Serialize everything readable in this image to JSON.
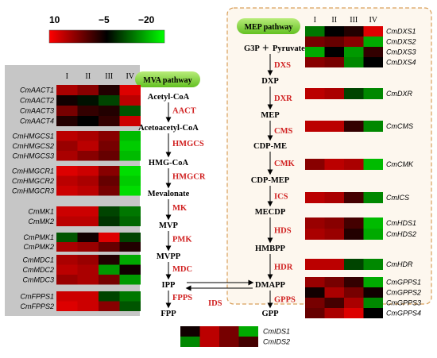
{
  "scale": {
    "labels": [
      "10",
      "−5",
      "−20"
    ],
    "stops": [
      "#ff0000",
      "#000000",
      "#00ff00"
    ]
  },
  "mva": {
    "title": "MVA pathway",
    "columns": [
      "I",
      "II",
      "III",
      "IV"
    ],
    "metabolites": [
      "Acetyl-CoA",
      "Acetoacetyl-CoA",
      "HMG-CoA",
      "Mevalonate",
      "MVP",
      "MVPP",
      "IPP",
      "FPP"
    ],
    "enzymes": [
      "AACT",
      "HMGCS",
      "HMGCR",
      "MK",
      "PMK",
      "MDC",
      "FPPS"
    ],
    "groups": [
      {
        "genes": [
          "CmAACT1",
          "CmAACT2",
          "CmAACT3",
          "CmAACT4"
        ],
        "cells": [
          [
            5,
            3,
            -3,
            8
          ],
          [
            -4,
            -6,
            -9,
            6
          ],
          [
            2,
            -2,
            -3,
            -10
          ],
          [
            -3,
            -5,
            -2,
            7
          ]
        ]
      },
      {
        "genes": [
          "CmHMGCS1",
          "CmHMGCS2",
          "CmHMGCS3"
        ],
        "cells": [
          [
            6,
            5,
            3,
            -16
          ],
          [
            4,
            6,
            2,
            -17
          ],
          [
            5,
            3,
            1,
            -16
          ]
        ]
      },
      {
        "genes": [
          "CmHMGCR1",
          "CmHMGCR2",
          "CmHMGCR3"
        ],
        "cells": [
          [
            8,
            7,
            3,
            -18
          ],
          [
            6,
            5,
            1,
            -17
          ],
          [
            7,
            6,
            2,
            -18
          ]
        ]
      },
      {
        "genes": [
          "CmMK1",
          "CmMK2"
        ],
        "cells": [
          [
            7,
            7,
            -9,
            -12
          ],
          [
            6,
            6,
            -8,
            -11
          ]
        ]
      },
      {
        "genes": [
          "CmPMK1",
          "CmPMK2"
        ],
        "cells": [
          [
            -10,
            -4,
            8,
            -9
          ],
          [
            5,
            4,
            1,
            -3
          ]
        ]
      },
      {
        "genes": [
          "CmMDC1",
          "CmMDC2",
          "CmMDC3"
        ],
        "cells": [
          [
            5,
            4,
            -3,
            -15
          ],
          [
            6,
            5,
            -14,
            -4
          ],
          [
            4,
            5,
            2,
            -14
          ]
        ]
      },
      {
        "genes": [
          "CmFPPS1",
          "CmFPPS2"
        ],
        "cells": [
          [
            7,
            7,
            -9,
            -12
          ],
          [
            8,
            7,
            3,
            -10
          ]
        ]
      }
    ]
  },
  "mep": {
    "title": "MEP pathway",
    "columns": [
      "I",
      "II",
      "III",
      "IV"
    ],
    "g3p": "G3P",
    "plus": "+",
    "pyruvate": "Pyruvate",
    "metabolites": [
      "DXP",
      "MEP",
      "CDP-ME",
      "CDP-MEP",
      "MECDP",
      "HMBPP",
      "DMAPP",
      "GPP"
    ],
    "enzymes": [
      "DXS",
      "DXR",
      "CMS",
      "CMK",
      "ICS",
      "HDS",
      "HDR",
      "GPPS"
    ],
    "ids": "IDS",
    "groups": [
      {
        "genes": [
          "CmDXS1",
          "CmDXS2",
          "CmDXS3",
          "CmDXS4"
        ],
        "cells": [
          [
            -12,
            -5,
            -3,
            8
          ],
          [
            2,
            1,
            3,
            -15
          ],
          [
            -15,
            -5,
            -14,
            -2
          ],
          [
            3,
            2,
            -13,
            -5
          ]
        ]
      },
      {
        "genes": [
          "CmDXR"
        ],
        "cells": [
          [
            6,
            5,
            -9,
            -13
          ]
        ]
      },
      {
        "genes": [
          "CmCMS"
        ],
        "cells": [
          [
            6,
            6,
            -2,
            -13
          ]
        ]
      },
      {
        "genes": [
          "CmCMK"
        ],
        "cells": [
          [
            3,
            6,
            5,
            -16
          ]
        ]
      },
      {
        "genes": [
          "CmICS"
        ],
        "cells": [
          [
            6,
            5,
            -1,
            -13
          ]
        ]
      },
      {
        "genes": [
          "CmHDS1",
          "CmHDS2"
        ],
        "cells": [
          [
            4,
            3,
            -1,
            -16
          ],
          [
            5,
            4,
            -3,
            -15
          ]
        ]
      },
      {
        "genes": [
          "CmHDR"
        ],
        "cells": [
          [
            6,
            6,
            -9,
            -13
          ]
        ]
      },
      {
        "genes": [
          "CmGPPS1",
          "CmGPPS2",
          "CmGPPS3",
          "CmGPPS4"
        ],
        "cells": [
          [
            4,
            2,
            -2,
            -15
          ],
          [
            -4,
            5,
            2,
            -4
          ],
          [
            2,
            -1,
            5,
            -13
          ],
          [
            1,
            5,
            8,
            -5
          ]
        ]
      }
    ]
  },
  "ids_heatmap": {
    "genes": [
      "CmIDS1",
      "CmIDS2"
    ],
    "cells": [
      [
        -4,
        6,
        2,
        -15
      ],
      [
        -13,
        6,
        2,
        -1
      ]
    ]
  }
}
